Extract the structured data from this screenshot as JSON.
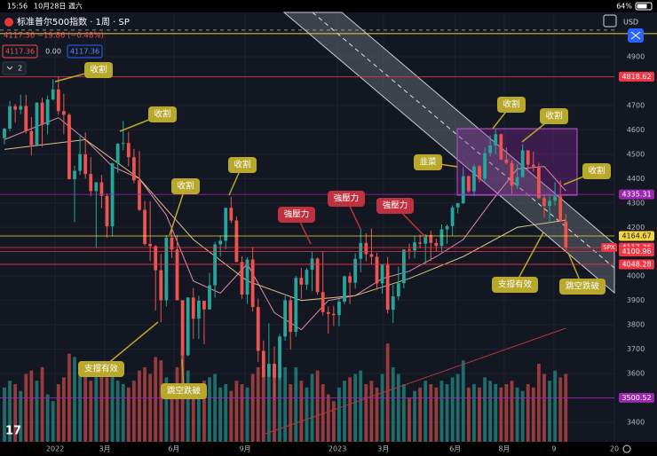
{
  "status_bar": {
    "time": "15:56",
    "date": "10月28日 週六",
    "battery": "64%"
  },
  "header": {
    "symbol": "标准普尔500指数 · 1周 · SP",
    "quote": "4117.36 −19.86 (−0.48%)",
    "box1": "4117.36",
    "box2": "0.00",
    "box3": "4117.36",
    "indicator_count": "2",
    "currency": "USD"
  },
  "chart_data": {
    "type": "candlestick",
    "candles": [
      [
        4566,
        4608,
        4540,
        4605
      ],
      [
        4605,
        4718,
        4595,
        4697
      ],
      [
        4697,
        4707,
        4630,
        4683
      ],
      [
        4683,
        4744,
        4665,
        4698
      ],
      [
        4698,
        4743,
        4585,
        4595
      ],
      [
        4595,
        4652,
        4495,
        4538
      ],
      [
        4538,
        4713,
        4532,
        4712
      ],
      [
        4712,
        4732,
        4531,
        4621
      ],
      [
        4621,
        4741,
        4582,
        4725
      ],
      [
        4725,
        4808,
        4720,
        4766
      ],
      [
        4766,
        4818.62,
        4662,
        4677
      ],
      [
        4677,
        4749,
        4582,
        4662
      ],
      [
        4662,
        4669,
        4396,
        4398
      ],
      [
        4398,
        4453,
        4222,
        4432
      ],
      [
        4432,
        4582,
        4415,
        4500
      ],
      [
        4500,
        4590,
        4401,
        4419
      ],
      [
        4419,
        4489,
        4327,
        4349
      ],
      [
        4349,
        4385,
        4115,
        4385
      ],
      [
        4385,
        4416,
        4279,
        4329
      ],
      [
        4329,
        4339,
        4158,
        4204
      ],
      [
        4204,
        4465,
        4162,
        4463
      ],
      [
        4463,
        4546,
        4424,
        4543
      ],
      [
        4543,
        4637,
        4517,
        4546
      ],
      [
        4546,
        4593,
        4450,
        4488
      ],
      [
        4488,
        4522,
        4381,
        4393
      ],
      [
        4393,
        4513,
        4267,
        4272
      ],
      [
        4272,
        4308,
        4124,
        4132
      ],
      [
        4132,
        4307,
        4062,
        4123
      ],
      [
        4123,
        4126,
        3859,
        4024
      ],
      [
        4024,
        4091,
        3811,
        3901
      ],
      [
        3901,
        4169,
        3876,
        4158
      ],
      [
        4158,
        4205,
        4074,
        4109
      ],
      [
        4109,
        4169,
        3901,
        3901
      ],
      [
        3901,
        3901,
        3636,
        3675
      ],
      [
        3675,
        3913,
        3671,
        3912
      ],
      [
        3912,
        3951,
        3743,
        3825
      ],
      [
        3825,
        3919,
        3742,
        3899
      ],
      [
        3899,
        3899,
        3721,
        3863
      ],
      [
        3863,
        4013,
        3863,
        3962
      ],
      [
        3962,
        4141,
        3911,
        4130
      ],
      [
        4130,
        4167,
        4080,
        4145
      ],
      [
        4145,
        4280,
        4110,
        4280
      ],
      [
        4280,
        4325,
        4218,
        4228
      ],
      [
        4228,
        4244,
        4058,
        4058
      ],
      [
        4058,
        4081,
        3907,
        3924
      ],
      [
        3924,
        4077,
        3886,
        4068
      ],
      [
        4068,
        4119,
        3855,
        3873
      ],
      [
        3873,
        3908,
        3647,
        3693
      ],
      [
        3693,
        3736,
        3584,
        3586
      ],
      [
        3586,
        3807,
        3584,
        3640
      ],
      [
        3640,
        3711,
        3491,
        3583
      ],
      [
        3583,
        3762,
        3573,
        3752
      ],
      [
        3752,
        3919,
        3735,
        3901
      ],
      [
        3901,
        3914,
        3699,
        3771
      ],
      [
        3771,
        4001,
        3751,
        3993
      ],
      [
        3993,
        4034,
        3907,
        3965
      ],
      [
        3965,
        4034,
        3944,
        4026
      ],
      [
        4026,
        4100,
        3938,
        4072
      ],
      [
        4072,
        4076,
        3923,
        3934
      ],
      [
        3934,
        4101,
        3838,
        3852
      ],
      [
        3852,
        3876,
        3764,
        3845
      ],
      [
        3845,
        3878,
        3795,
        3840
      ],
      [
        3840,
        3906,
        3794,
        3895
      ],
      [
        3895,
        4003,
        3885,
        3999
      ],
      [
        3999,
        4015,
        3885,
        3973
      ],
      [
        3973,
        4094,
        3949,
        4071
      ],
      [
        4071,
        4195,
        4015,
        4136
      ],
      [
        4136,
        4176,
        4060,
        4090
      ],
      [
        4090,
        4195,
        4047,
        4079
      ],
      [
        4079,
        4096,
        3944,
        3970
      ],
      [
        3970,
        4048,
        3928,
        4046
      ],
      [
        4046,
        4079,
        3847,
        3862
      ],
      [
        3862,
        3964,
        3808,
        3917
      ],
      [
        3917,
        4039,
        3901,
        3971
      ],
      [
        3971,
        4110,
        3950,
        4109
      ],
      [
        4109,
        4133,
        4069,
        4105
      ],
      [
        4105,
        4164,
        4073,
        4138
      ],
      [
        4138,
        4170,
        4114,
        4133
      ],
      [
        4133,
        4171,
        4048,
        4169
      ],
      [
        4169,
        4187,
        4062,
        4136
      ],
      [
        4136,
        4154,
        4099,
        4124
      ],
      [
        4124,
        4212,
        4098,
        4192
      ],
      [
        4192,
        4212,
        4132,
        4205
      ],
      [
        4205,
        4290,
        4166,
        4282
      ],
      [
        4282,
        4299,
        4257,
        4299
      ],
      [
        4299,
        4448,
        4295,
        4410
      ],
      [
        4410,
        4413,
        4341,
        4348
      ],
      [
        4348,
        4458,
        4328,
        4450
      ],
      [
        4450,
        4456,
        4385,
        4399
      ],
      [
        4399,
        4528,
        4389,
        4505
      ],
      [
        4505,
        4578,
        4491,
        4536
      ],
      [
        4536,
        4607,
        4500,
        4582
      ],
      [
        4582,
        4584,
        4476,
        4478
      ],
      [
        4478,
        4528,
        4459,
        4464
      ],
      [
        4464,
        4476,
        4335,
        4370
      ],
      [
        4370,
        4458,
        4357,
        4406
      ],
      [
        4406,
        4541,
        4404,
        4516
      ],
      [
        4516,
        4516,
        4432,
        4457
      ],
      [
        4457,
        4511,
        4428,
        4450
      ],
      [
        4450,
        4465,
        4316,
        4320
      ],
      [
        4320,
        4338,
        4239,
        4288
      ],
      [
        4288,
        4339,
        4216,
        4309
      ],
      [
        4309,
        4385,
        4290,
        4327
      ],
      [
        4327,
        4394,
        4223,
        4224
      ],
      [
        4224,
        4256,
        4103,
        4117.36
      ]
    ],
    "volumes": [
      16,
      18,
      17,
      15,
      20,
      21,
      18,
      22,
      14,
      12,
      17,
      19,
      26,
      25,
      21,
      20,
      18,
      22,
      20,
      19,
      23,
      18,
      17,
      16,
      18,
      21,
      22,
      20,
      25,
      24,
      19,
      17,
      22,
      27,
      21,
      15,
      16,
      18,
      19,
      20,
      16,
      17,
      15,
      18,
      17,
      16,
      20,
      22,
      21,
      19,
      23,
      20,
      22,
      17,
      22,
      18,
      16,
      20,
      21,
      17,
      14,
      12,
      16,
      18,
      19,
      20,
      21,
      17,
      18,
      16,
      20,
      29,
      22,
      20,
      17,
      13,
      15,
      16,
      18,
      17,
      16,
      18,
      17,
      19,
      20,
      24,
      16,
      17,
      16,
      19,
      18,
      17,
      16,
      17,
      18,
      16,
      15,
      17,
      16,
      23,
      20,
      18,
      21,
      19,
      20
    ],
    "volume_lim": [
      0,
      34
    ],
    "up_color": "#26a69a",
    "down_color": "#ef5350",
    "xlim": [
      -0.82,
      113
    ],
    "ylim": [
      3320,
      5082
    ],
    "xticks": [
      {
        "value": 9.4,
        "label": "2022"
      },
      {
        "value": 18.6,
        "label": "3月"
      },
      {
        "value": 31.4,
        "label": "6月"
      },
      {
        "value": 44.6,
        "label": "9月"
      },
      {
        "value": 61.7,
        "label": "2023"
      },
      {
        "value": 70.2,
        "label": "3月"
      },
      {
        "value": 83.5,
        "label": "6月"
      },
      {
        "value": 92.6,
        "label": "8月"
      },
      {
        "value": 101.8,
        "label": "9"
      },
      {
        "value": 113,
        "label": "20"
      }
    ],
    "yticks": [
      4900,
      4700,
      4600,
      4500,
      4400,
      4300,
      4200,
      4000,
      3900,
      3800,
      3700,
      3600,
      3400
    ],
    "levels": [
      {
        "value": 4818.62,
        "color": "#f23645",
        "text_color": "#ffffff"
      },
      {
        "value": 4335.31,
        "color": "#9c27b0",
        "text_color": "#ffffff"
      },
      {
        "value": 4164.67,
        "color": "#f5d442",
        "text_color": "#131722"
      },
      {
        "value": 4117.36,
        "color": "#f23645",
        "text_color": "#ffffff"
      },
      {
        "value": 4100.96,
        "color": "#f23645",
        "text_color": "#ffffff"
      },
      {
        "value": 4048.28,
        "color": "#f23645",
        "text_color": "#ffffff"
      },
      {
        "value": 3500.52,
        "color": "#9c27b0",
        "text_color": "#ffffff"
      }
    ],
    "lines": [
      {
        "value": 4995,
        "color": "#e8d44d"
      }
    ],
    "ma_lines": [
      {
        "color": "#e08aa8",
        "x": [
          0,
          10,
          15,
          20,
          25,
          30,
          35,
          40,
          45,
          50,
          55,
          60,
          65,
          70,
          75,
          80,
          85,
          90,
          95,
          100,
          104
        ],
        "values": [
          4560,
          4650,
          4560,
          4450,
          4400,
          4250,
          3980,
          3930,
          4050,
          3850,
          3780,
          3900,
          3920,
          3990,
          4020,
          4080,
          4150,
          4300,
          4440,
          4450,
          4350
        ]
      },
      {
        "color": "#d8c28a",
        "x": [
          0,
          15,
          25,
          35,
          45,
          55,
          65,
          75,
          85,
          95,
          104
        ],
        "values": [
          4520,
          4560,
          4400,
          4150,
          3980,
          3900,
          3920,
          3990,
          4080,
          4200,
          4230
        ]
      },
      {
        "color": "#b23a3a",
        "x": [
          48,
          104
        ],
        "values": [
          3350,
          3786
        ]
      }
    ],
    "symbol_tag": "SPX",
    "annotations": [
      {
        "text": "收割",
        "color": "#b8a82c"
      },
      {
        "text": "收割",
        "color": "#b8a82c"
      },
      {
        "text": "收割",
        "color": "#b8a82c"
      },
      {
        "text": "收割",
        "color": "#b8a82c"
      },
      {
        "text": "強壓力",
        "color": "#c0313f"
      },
      {
        "text": "強壓力",
        "color": "#c0313f"
      },
      {
        "text": "強壓力",
        "color": "#c0313f"
      },
      {
        "text": "韭菜",
        "color": "#b8a82c"
      },
      {
        "text": "收割",
        "color": "#b8a82c"
      },
      {
        "text": "收割",
        "color": "#b8a82c"
      },
      {
        "text": "收割",
        "color": "#b8a82c"
      },
      {
        "text": "支撐有效",
        "color": "#b8a82c"
      },
      {
        "text": "跳空跌破",
        "color": "#b8a82c"
      },
      {
        "text": "支撐有效",
        "color": "#b8a82c"
      },
      {
        "text": "跳空跌破",
        "color": "#b8a82c"
      }
    ]
  }
}
